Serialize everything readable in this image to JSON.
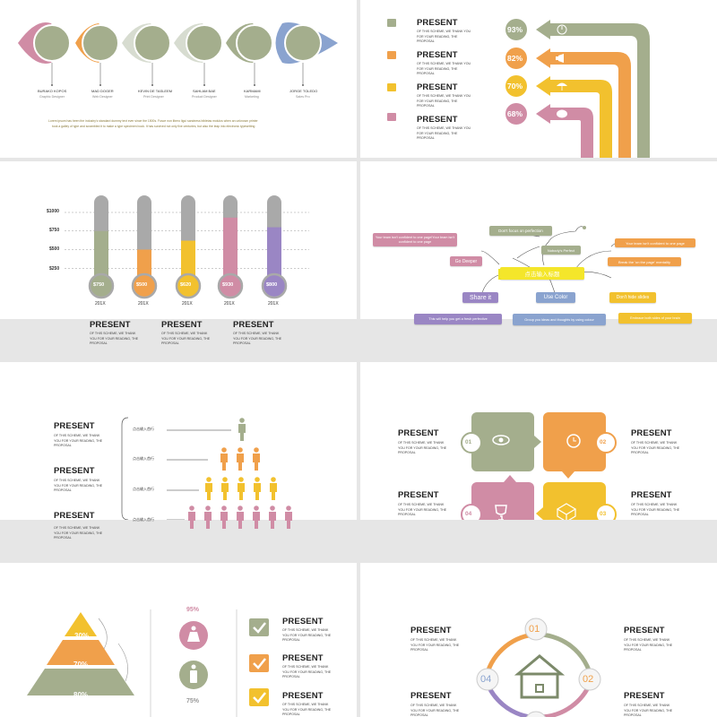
{
  "colors": {
    "green": "#a4ae8d",
    "orange": "#f0a04b",
    "yellow": "#f2c12e",
    "pink": "#d08ca5",
    "blue": "#8aa3cf",
    "purple": "#9a86c4",
    "gray": "#a9a9a9",
    "accent_text": "#8a7a3a"
  },
  "slide1": {
    "people": [
      {
        "name": "BURAKO KOPOS",
        "role": "Graphic Designer"
      },
      {
        "name": "MAD DOGER",
        "role": "Web Designer"
      },
      {
        "name": "KEVIN DE TASLEEM",
        "role": "Print Designer"
      },
      {
        "name": "SAHLAM BAE",
        "role": "Product Designer"
      },
      {
        "name": "KARMAMI",
        "role": "Marketing"
      },
      {
        "name": "JORGE TOLEDO",
        "role": "Sales Pro"
      }
    ],
    "caption_line1": "Lorem ipsum has been the industry's standard dummy text ever since the 1500s. Fusce non libero ligui sandness bibletas molulos when an unknown printer",
    "caption_line2": "took a galley of type and scrambled it to make a type specimen book. It has survived not only five centuries, but also the leap into electronic typesetting"
  },
  "slide2": {
    "items": [
      {
        "title": "PRESENT",
        "sub": "OF THIS SCHEME, WE THANK YOU FOR YOUR READING, THE PROPOSAL",
        "pct": "93%",
        "icon": "power-icon"
      },
      {
        "title": "PRESENT",
        "sub": "OF THIS SCHEME, WE THANK YOU FOR YOUR READING, THE PROPOSAL",
        "pct": "82%",
        "icon": "megaphone-icon"
      },
      {
        "title": "PRESENT",
        "sub": "OF THIS SCHEME, WE THANK YOU FOR YOUR READING, THE PROPOSAL",
        "pct": "70%",
        "icon": "umbrella-icon"
      },
      {
        "title": "PRESENT",
        "sub": "OF THIS SCHEME, WE THANK YOU FOR YOUR READING, THE PROPOSAL",
        "pct": "68%",
        "icon": "piggy-bank-icon"
      }
    ]
  },
  "slide3": {
    "chart_data": {
      "type": "bar",
      "categories": [
        "201X",
        "201X",
        "201X",
        "201X",
        "201X"
      ],
      "values": [
        750,
        500,
        620,
        930,
        800
      ],
      "value_labels": [
        "$750",
        "$500",
        "$620",
        "$930",
        "$800"
      ],
      "yticks": [
        "$1000",
        "$750",
        "$500",
        "$250"
      ],
      "ylim": [
        0,
        1000
      ]
    },
    "texts": [
      {
        "title": "PRESENT",
        "sub": "OF THIS SCHEME, WE THANK YOU FOR YOUR READING, THE PROPOSAL"
      },
      {
        "title": "PRESENT",
        "sub": "OF THIS SCHEME, WE THANK YOU FOR YOUR READING, THE PROPOSAL"
      },
      {
        "title": "PRESENT",
        "sub": "OF THIS SCHEME, WE THANK YOU FOR YOUR READING, THE PROPOSAL"
      }
    ]
  },
  "slide4": {
    "center": "点击输入标题",
    "nodes": {
      "focus": "Don't focus on perfection",
      "nobody": "Nobody's Perfect",
      "team_left": "Your team isn't confident to one page!Your team isn't confident to one page",
      "go_deeper": "Go Deeper",
      "team_right": "Your team isn't confident to one page",
      "break_rule": "Break the 'on the page' mentality",
      "share": "Share it",
      "use_color": "Use Color",
      "dont_hide": "Don't hide slides",
      "help": "This will help you get a fresh perfective",
      "group": "Group you ideas and thoughts by using colour",
      "embrace": "Embrace both sides of your brain"
    }
  },
  "slide5": {
    "texts": [
      {
        "title": "PRESENT",
        "sub": "OF THIS SCHEME, WE THANK YOU FOR YOUR READING, THE PROPOSAL"
      },
      {
        "title": "PRESENT",
        "sub": "OF THIS SCHEME, WE THANK YOU FOR YOUR READING, THE PROPOSAL"
      },
      {
        "title": "PRESENT",
        "sub": "OF THIS SCHEME, WE THANK YOU FOR YOUR READING, THE PROPOSAL"
      }
    ],
    "labels": [
      "点击输入首行",
      "点击输入首行",
      "点击输入首行",
      "点击输入首行"
    ],
    "rows": [
      1,
      3,
      5,
      7
    ]
  },
  "slide6": {
    "texts": [
      {
        "title": "PRESENT",
        "sub": "OF THIS SCHEME, WE THANK YOU FOR YOUR READING, THE PROPOSAL"
      },
      {
        "title": "PRESENT",
        "sub": "OF THIS SCHEME, WE THANK YOU FOR YOUR READING, THE PROPOSAL"
      },
      {
        "title": "PRESENT",
        "sub": "OF THIS SCHEME, WE THANK YOU FOR YOUR READING, THE PROPOSAL"
      },
      {
        "title": "PRESENT",
        "sub": "OF THIS SCHEME, WE THANK YOU FOR YOUR READING, THE PROPOSAL"
      }
    ],
    "nums": [
      "01",
      "02",
      "03",
      "04"
    ]
  },
  "slide7": {
    "pyramid": [
      "30%",
      "70%",
      "80%"
    ],
    "female_pct": "95%",
    "male_pct": "75%",
    "items": [
      {
        "title": "PRESENT",
        "sub": "OF THIS SCHEME, WE THANK YOU FOR YOUR READING, THE PROPOSAL"
      },
      {
        "title": "PRESENT",
        "sub": "OF THIS SCHEME, WE THANK YOU FOR YOUR READING, THE PROPOSAL"
      },
      {
        "title": "PRESENT",
        "sub": "OF THIS SCHEME, WE THANK YOU FOR YOUR READING, THE PROPOSAL"
      }
    ]
  },
  "slide8": {
    "texts": [
      {
        "title": "PRESENT",
        "sub": "OF THIS SCHEME, WE THANK YOU FOR YOUR READING, THE PROPOSAL"
      },
      {
        "title": "PRESENT",
        "sub": "OF THIS SCHEME, WE THANK YOU FOR YOUR READING, THE PROPOSAL"
      },
      {
        "title": "PRESENT",
        "sub": "OF THIS SCHEME, WE THANK YOU FOR YOUR READING, THE PROPOSAL"
      },
      {
        "title": "PRESENT",
        "sub": "OF THIS SCHEME, WE THANK YOU FOR YOUR READING, THE PROPOSAL"
      }
    ],
    "nums": [
      "01",
      "02",
      "04"
    ]
  }
}
